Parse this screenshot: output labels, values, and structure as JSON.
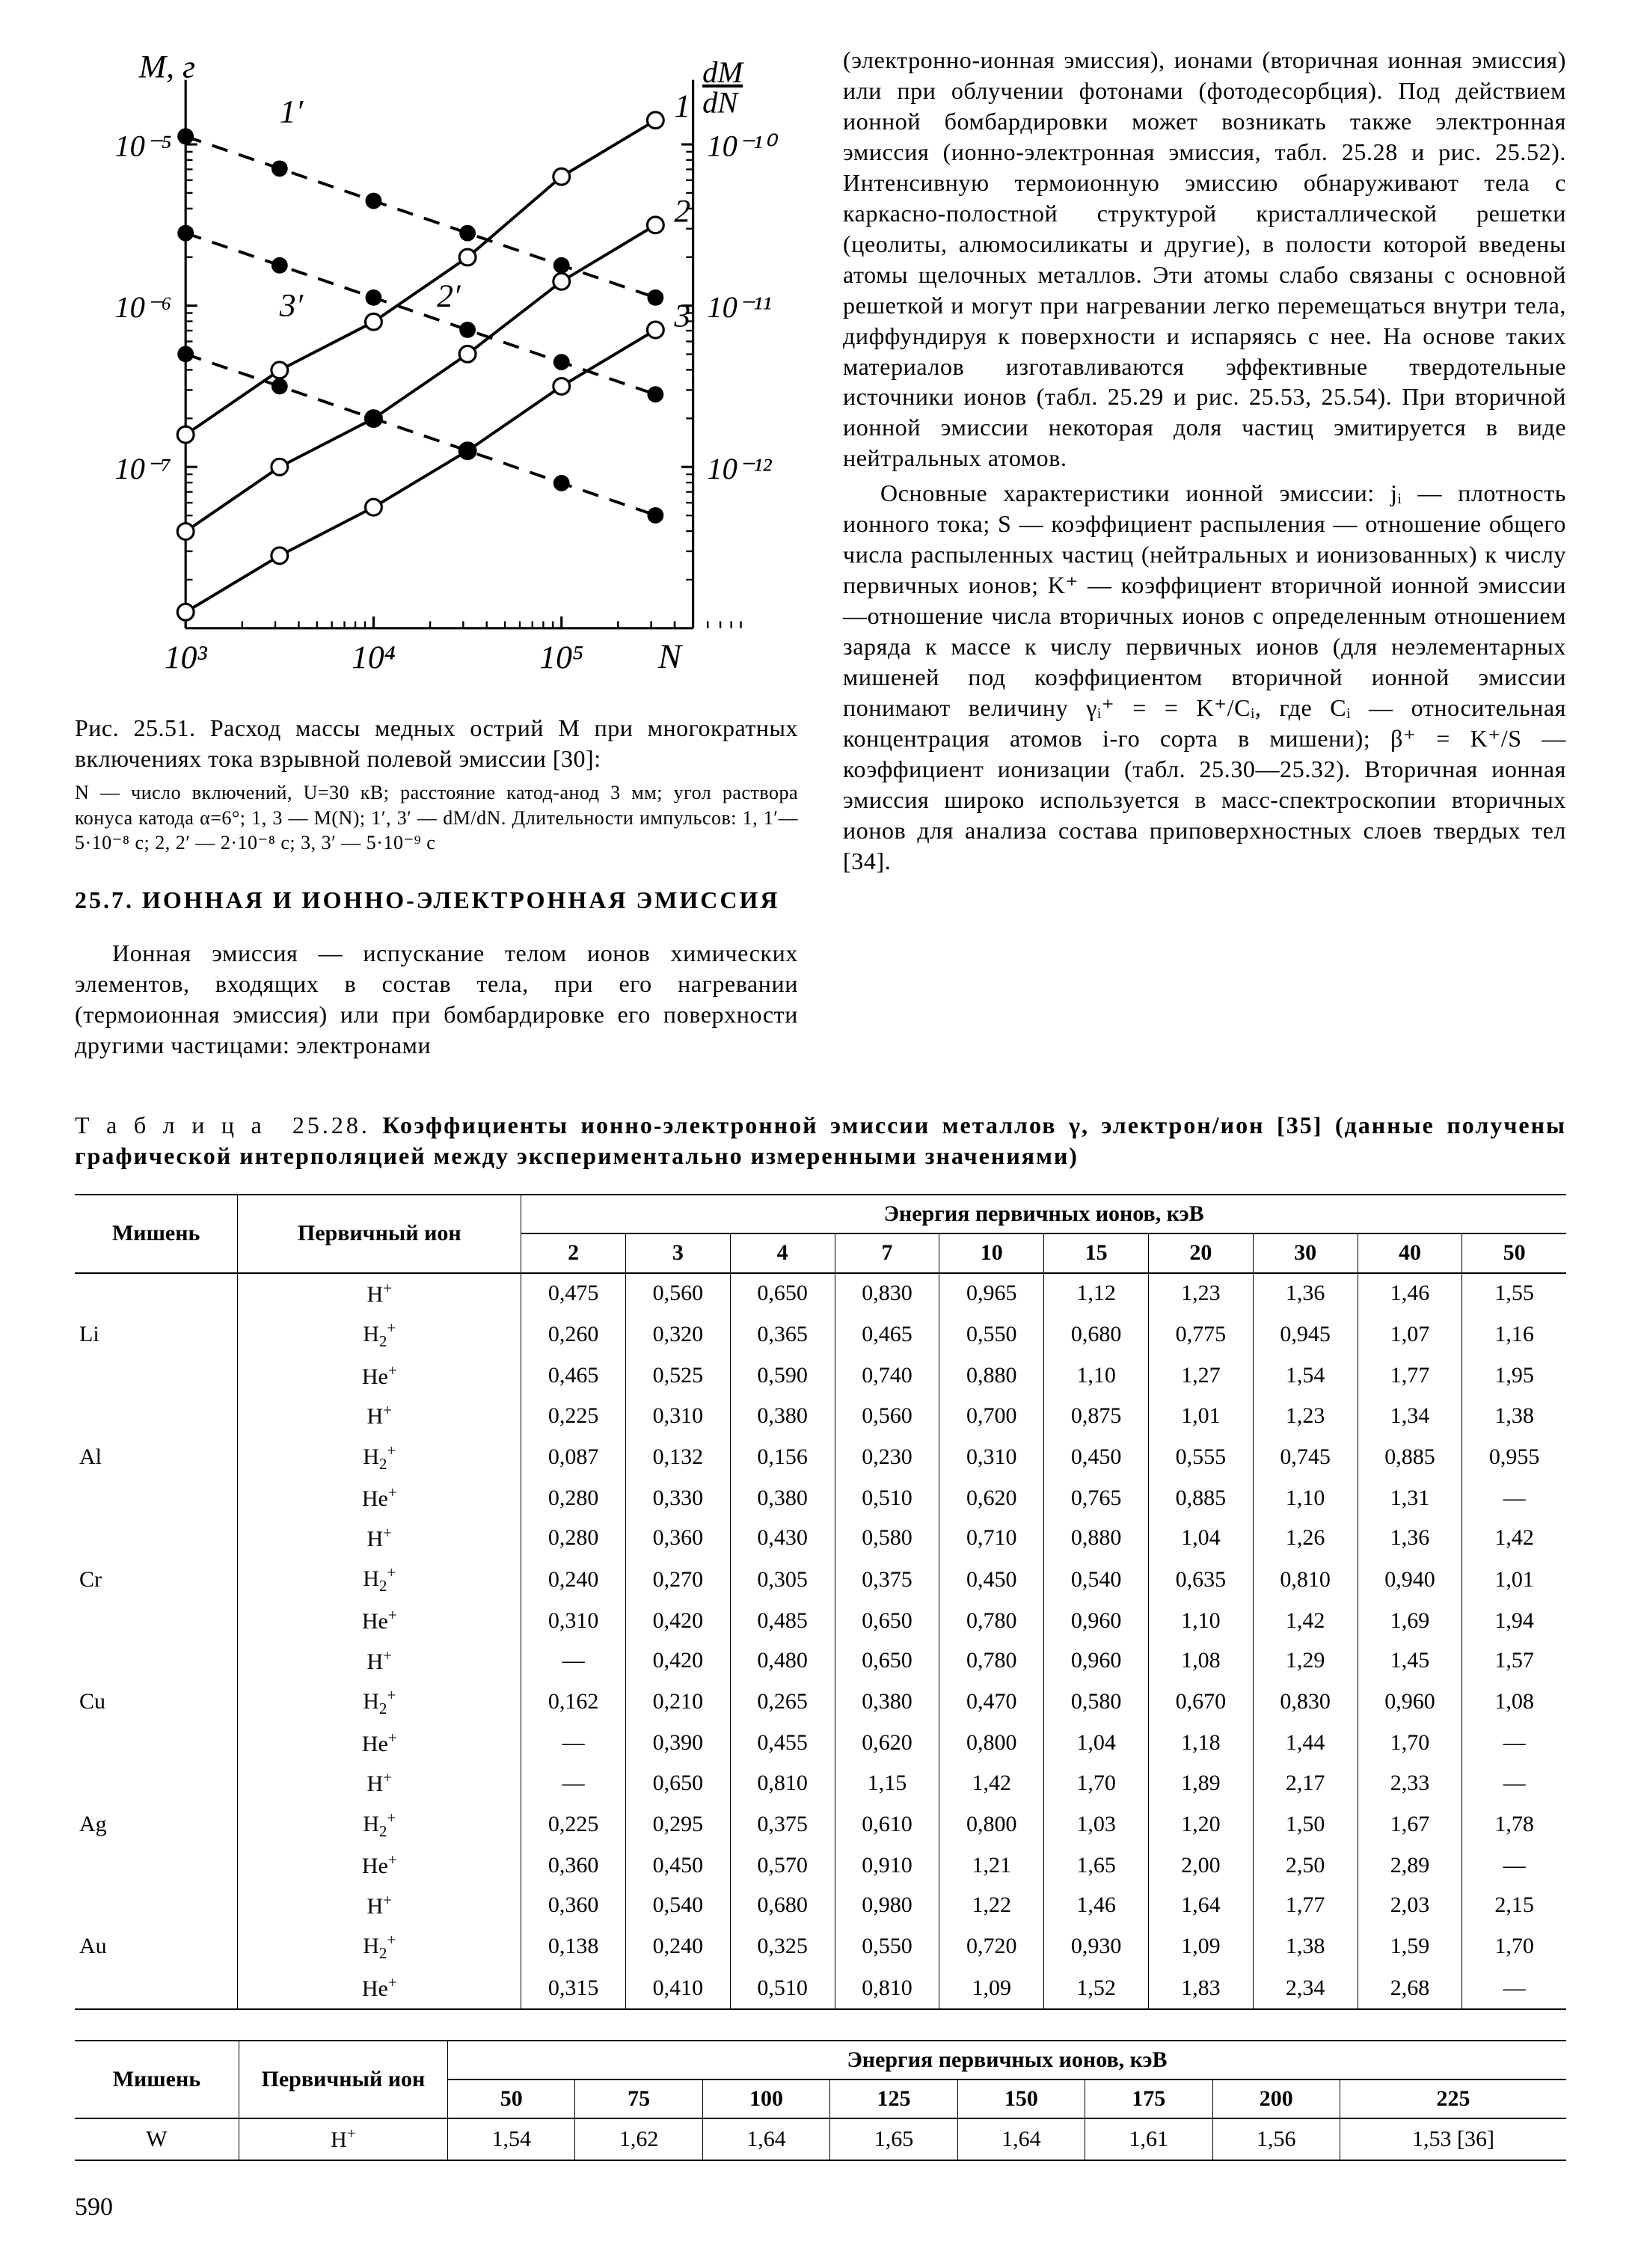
{
  "figure": {
    "caption": "Рис. 25.51. Расход массы медных острий M при многократных включениях тока взрывной полевой эмиссии [30]:",
    "sub": "N — число включений, U=30 кВ; расстояние катод-анод 3 мм; угол раствора конуса катода α=6°; 1, 3 — M(N); 1′, 3′ — dM/dN. Длительности импульсов: 1, 1′—5·10⁻⁸ с; 2, 2′ — 2·10⁻⁸ с; 3, 3′ — 5·10⁻⁹ с",
    "chart": {
      "x_label": "N",
      "y_left_label": "M, г",
      "y_right_label": "dM/dN",
      "x_ticks": [
        "10³",
        "10⁴",
        "10⁵",
        ""
      ],
      "y_left_ticks": [
        "10⁻⁵",
        "10⁻⁶",
        "10⁻⁷"
      ],
      "y_right_ticks": [
        "10⁻¹⁰",
        "10⁻¹¹",
        "10⁻¹²"
      ],
      "markers": [
        "1",
        "2",
        "3",
        "1′",
        "2′",
        "3′"
      ],
      "series": [
        {
          "style": "solid",
          "marker": "open",
          "pts": [
            [
              3.0,
              -6.8
            ],
            [
              3.5,
              -6.4
            ],
            [
              4.0,
              -6.1
            ],
            [
              4.5,
              -5.7
            ],
            [
              5.0,
              -5.2
            ],
            [
              5.5,
              -4.85
            ]
          ]
        },
        {
          "style": "solid",
          "marker": "open",
          "pts": [
            [
              3.0,
              -7.4
            ],
            [
              3.5,
              -7.0
            ],
            [
              4.0,
              -6.7
            ],
            [
              4.5,
              -6.3
            ],
            [
              5.0,
              -5.85
            ],
            [
              5.5,
              -5.5
            ]
          ]
        },
        {
          "style": "solid",
          "marker": "open",
          "pts": [
            [
              3.0,
              -7.9
            ],
            [
              3.5,
              -7.55
            ],
            [
              4.0,
              -7.25
            ],
            [
              4.5,
              -6.9
            ],
            [
              5.0,
              -6.5
            ],
            [
              5.5,
              -6.15
            ]
          ]
        },
        {
          "style": "dashed",
          "marker": "filled",
          "pts": [
            [
              3.0,
              -4.95
            ],
            [
              3.5,
              -5.15
            ],
            [
              4.0,
              -5.35
            ],
            [
              4.5,
              -5.55
            ],
            [
              5.0,
              -5.75
            ],
            [
              5.5,
              -5.95
            ]
          ]
        },
        {
          "style": "dashed",
          "marker": "filled",
          "pts": [
            [
              3.0,
              -5.55
            ],
            [
              3.5,
              -5.75
            ],
            [
              4.0,
              -5.95
            ],
            [
              4.5,
              -6.15
            ],
            [
              5.0,
              -6.35
            ],
            [
              5.5,
              -6.55
            ]
          ]
        },
        {
          "style": "dashed",
          "marker": "filled",
          "pts": [
            [
              3.0,
              -6.3
            ],
            [
              3.5,
              -6.5
            ],
            [
              4.0,
              -6.7
            ],
            [
              4.5,
              -6.9
            ],
            [
              5.0,
              -7.1
            ],
            [
              5.5,
              -7.3
            ]
          ]
        }
      ],
      "line_width": 2.5,
      "axis_width": 2,
      "marker_radius": 7,
      "color": "#000000",
      "bg": "#ffffff",
      "x_domain": [
        3,
        5.7
      ],
      "y_domain": [
        -8,
        -4.6
      ]
    }
  },
  "section": {
    "title": "25.7. ИОННАЯ И ИОННО-ЭЛЕКТРОННАЯ ЭМИССИЯ",
    "p1": "Ионная эмиссия — испускание телом ионов химических элементов, входящих в состав тела, при его нагревании (термоионная эмиссия) или при бомбардировке его поверхности другими частицами: электронами",
    "p2": "(электронно-ионная эмиссия), ионами (вторичная ионная эмиссия) или при облучении фотонами (фотодесорбция). Под действием ионной бомбардировки может возникать также электронная эмиссия (ионно-электронная эмиссия, табл. 25.28 и рис. 25.52). Интенсивную термоионную эмиссию обнаруживают тела с каркасно-полостной структурой кристаллической решетки (цеолиты, алюмосиликаты и другие), в полости которой введены атомы щелочных металлов. Эти атомы слабо связаны с основной решеткой и могут при нагревании легко перемещаться внутри тела, диффундируя к поверхности и испаряясь с нее. На основе таких материалов изготавливаются эффективные твердотельные источники ионов (табл. 25.29 и рис. 25.53, 25.54). При вторичной ионной эмиссии некоторая доля частиц эмитируется в виде нейтральных атомов.",
    "p3a": "Основные характеристики ионной эмиссии: jᵢ — плотность ионного тока; S — коэффициент распыления — отношение общего числа распыленных частиц (нейтральных и ионизованных) к числу первичных ионов; K⁺ — коэффициент вторичной ионной эмиссии—отношение числа вторичных ионов с определенным отношением заряда к массе к числу первичных ионов (для неэлементарных мишеней под коэффициентом вторичной ионной эмиссии понимают величину ",
    "p3formula": "γᵢ⁺ =",
    "p3b": " = K⁺/Cᵢ, где Cᵢ — относительная концентрация атомов i-го сорта в мишени); β⁺ = K⁺/S — коэффициент ионизации (табл. 25.30—25.32). Вторичная ионная эмиссия широко используется в масс-спектроскопии вторичных ионов для анализа состава приповерхностных слоев твердых тел [34]."
  },
  "table1": {
    "title_lead": "Т а б л и ц а  25.28.",
    "title_rest": " Коэффициенты ионно-электронной эмиссии металлов γ, электрон/ион [35] (данные получены графической интерполяцией между экспериментально измеренными значениями)",
    "col_target": "Мишень",
    "col_ion": "Первичный ион",
    "col_energy": "Энергия первичных ионов, кэВ",
    "energies": [
      "2",
      "3",
      "4",
      "7",
      "10",
      "15",
      "20",
      "30",
      "40",
      "50"
    ],
    "groups": [
      {
        "target": "Li",
        "rows": [
          {
            "ion": "H⁺",
            "v": [
              "0,475",
              "0,560",
              "0,650",
              "0,830",
              "0,965",
              "1,12",
              "1,23",
              "1,36",
              "1,46",
              "1,55"
            ]
          },
          {
            "ion": "H₂⁺",
            "v": [
              "0,260",
              "0,320",
              "0,365",
              "0,465",
              "0,550",
              "0,680",
              "0,775",
              "0,945",
              "1,07",
              "1,16"
            ]
          },
          {
            "ion": "He⁺",
            "v": [
              "0,465",
              "0,525",
              "0,590",
              "0,740",
              "0,880",
              "1,10",
              "1,27",
              "1,54",
              "1,77",
              "1,95"
            ]
          }
        ]
      },
      {
        "target": "Al",
        "rows": [
          {
            "ion": "H⁺",
            "v": [
              "0,225",
              "0,310",
              "0,380",
              "0,560",
              "0,700",
              "0,875",
              "1,01",
              "1,23",
              "1,34",
              "1,38"
            ]
          },
          {
            "ion": "H₂⁺",
            "v": [
              "0,087",
              "0,132",
              "0,156",
              "0,230",
              "0,310",
              "0,450",
              "0,555",
              "0,745",
              "0,885",
              "0,955"
            ]
          },
          {
            "ion": "He⁺",
            "v": [
              "0,280",
              "0,330",
              "0,380",
              "0,510",
              "0,620",
              "0,765",
              "0,885",
              "1,10",
              "1,31",
              "—"
            ]
          }
        ]
      },
      {
        "target": "Cr",
        "rows": [
          {
            "ion": "H⁺",
            "v": [
              "0,280",
              "0,360",
              "0,430",
              "0,580",
              "0,710",
              "0,880",
              "1,04",
              "1,26",
              "1,36",
              "1,42"
            ]
          },
          {
            "ion": "H₂⁺",
            "v": [
              "0,240",
              "0,270",
              "0,305",
              "0,375",
              "0,450",
              "0,540",
              "0,635",
              "0,810",
              "0,940",
              "1,01"
            ]
          },
          {
            "ion": "He⁺",
            "v": [
              "0,310",
              "0,420",
              "0,485",
              "0,650",
              "0,780",
              "0,960",
              "1,10",
              "1,42",
              "1,69",
              "1,94"
            ]
          }
        ]
      },
      {
        "target": "Cu",
        "rows": [
          {
            "ion": "H⁺",
            "v": [
              "—",
              "0,420",
              "0,480",
              "0,650",
              "0,780",
              "0,960",
              "1,08",
              "1,29",
              "1,45",
              "1,57"
            ]
          },
          {
            "ion": "H₂⁺",
            "v": [
              "0,162",
              "0,210",
              "0,265",
              "0,380",
              "0,470",
              "0,580",
              "0,670",
              "0,830",
              "0,960",
              "1,08"
            ]
          },
          {
            "ion": "He⁺",
            "v": [
              "—",
              "0,390",
              "0,455",
              "0,620",
              "0,800",
              "1,04",
              "1,18",
              "1,44",
              "1,70",
              "—"
            ]
          }
        ]
      },
      {
        "target": "Ag",
        "rows": [
          {
            "ion": "H⁺",
            "v": [
              "—",
              "0,650",
              "0,810",
              "1,15",
              "1,42",
              "1,70",
              "1,89",
              "2,17",
              "2,33",
              "—"
            ]
          },
          {
            "ion": "H₂⁺",
            "v": [
              "0,225",
              "0,295",
              "0,375",
              "0,610",
              "0,800",
              "1,03",
              "1,20",
              "1,50",
              "1,67",
              "1,78"
            ]
          },
          {
            "ion": "He⁺",
            "v": [
              "0,360",
              "0,450",
              "0,570",
              "0,910",
              "1,21",
              "1,65",
              "2,00",
              "2,50",
              "2,89",
              "—"
            ]
          }
        ]
      },
      {
        "target": "Au",
        "rows": [
          {
            "ion": "H⁺",
            "v": [
              "0,360",
              "0,540",
              "0,680",
              "0,980",
              "1,22",
              "1,46",
              "1,64",
              "1,77",
              "2,03",
              "2,15"
            ]
          },
          {
            "ion": "H₂⁺",
            "v": [
              "0,138",
              "0,240",
              "0,325",
              "0,550",
              "0,720",
              "0,930",
              "1,09",
              "1,38",
              "1,59",
              "1,70"
            ]
          },
          {
            "ion": "He⁺",
            "v": [
              "0,315",
              "0,410",
              "0,510",
              "0,810",
              "1,09",
              "1,52",
              "1,83",
              "2,34",
              "2,68",
              "—"
            ]
          }
        ]
      }
    ]
  },
  "table2": {
    "col_target": "Мишень",
    "col_ion": "Первичный ион",
    "col_energy": "Энергия первичных ионов, кэВ",
    "energies": [
      "50",
      "75",
      "100",
      "125",
      "150",
      "175",
      "200",
      "225"
    ],
    "row": {
      "target": "W",
      "ion": "H⁺",
      "v": [
        "1,54",
        "1,62",
        "1,64",
        "1,65",
        "1,64",
        "1,61",
        "1,56",
        "1,53 [36]"
      ]
    }
  },
  "pagenum": "590"
}
